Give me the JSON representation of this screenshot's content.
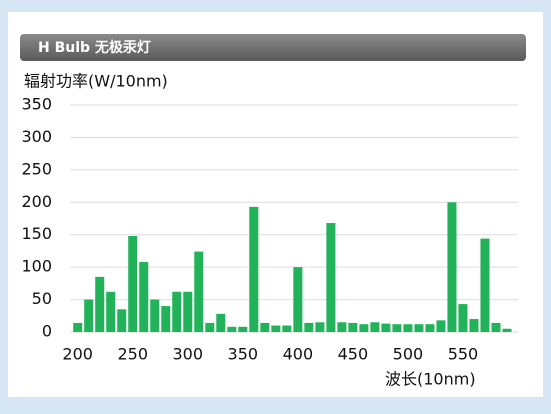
{
  "chart_data": {
    "type": "bar",
    "title": "H Bulb 无极汞灯",
    "y_label": "辐射功率(W/10nm)",
    "x_label": "波长(10nm)",
    "x": [
      200,
      210,
      220,
      230,
      240,
      250,
      260,
      270,
      280,
      290,
      300,
      310,
      320,
      330,
      340,
      350,
      360,
      370,
      380,
      390,
      400,
      410,
      420,
      430,
      440,
      450,
      460,
      470,
      480,
      490,
      500,
      510,
      520,
      530,
      540,
      550,
      560,
      570,
      580,
      590
    ],
    "values": [
      14,
      50,
      85,
      62,
      35,
      148,
      108,
      50,
      40,
      62,
      62,
      124,
      14,
      28,
      8,
      8,
      193,
      14,
      10,
      10,
      100,
      14,
      15,
      168,
      15,
      14,
      12,
      15,
      13,
      12,
      12,
      12,
      12,
      18,
      200,
      43,
      20,
      144,
      14,
      5
    ],
    "color": "#22b35a",
    "xlim": [
      193,
      600
    ],
    "xticks": [
      200,
      250,
      300,
      350,
      400,
      450,
      500,
      550
    ],
    "ylim": [
      0,
      350
    ],
    "yticks": [
      0,
      50,
      100,
      150,
      200,
      250,
      300,
      350
    ],
    "grid": true
  }
}
